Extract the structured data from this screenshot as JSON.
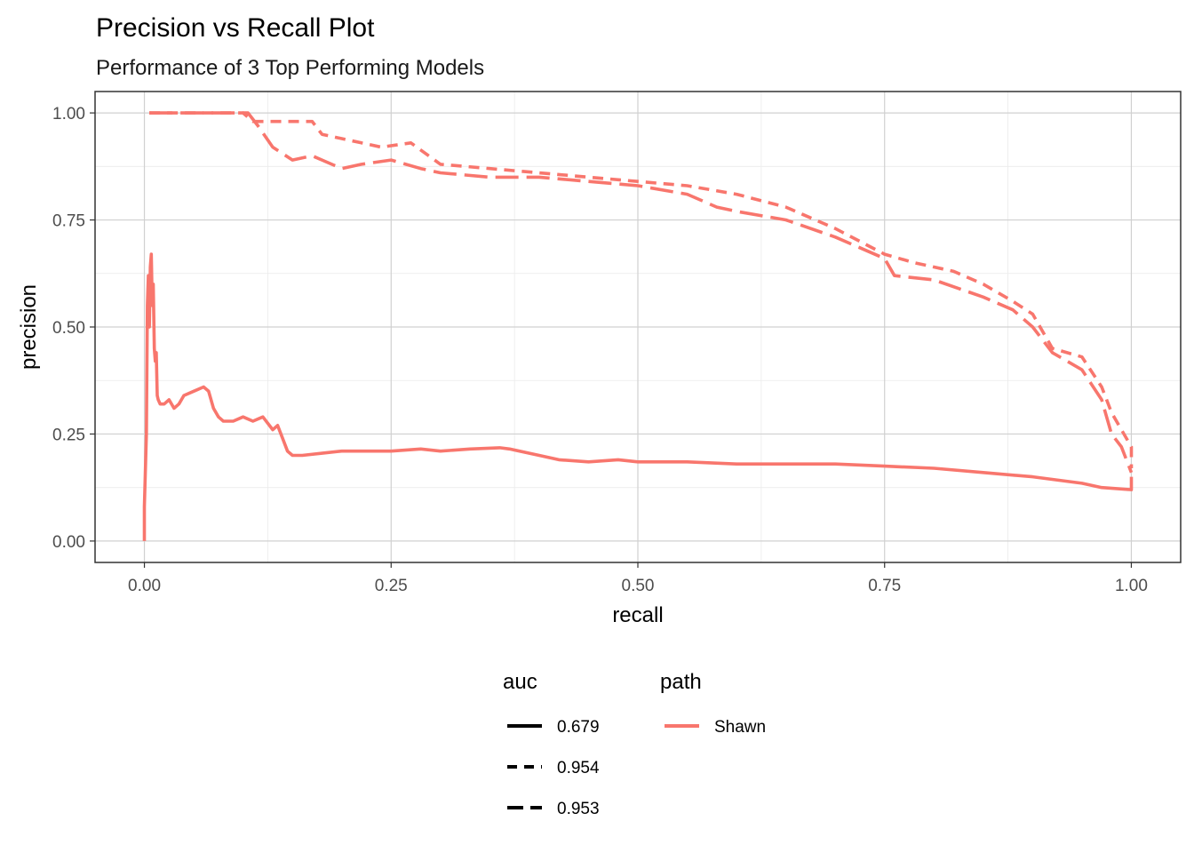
{
  "chart_data": {
    "type": "line",
    "title": "Precision vs Recall Plot",
    "subtitle": "Performance of 3 Top Performing Models",
    "xlabel": "recall",
    "ylabel": "precision",
    "xlim": [
      -0.05,
      1.05
    ],
    "ylim": [
      -0.05,
      1.05
    ],
    "x_ticks": [
      0.0,
      0.25,
      0.5,
      0.75,
      1.0
    ],
    "x_tick_labels": [
      "0.00",
      "0.25",
      "0.50",
      "0.75",
      "1.00"
    ],
    "y_ticks": [
      0.0,
      0.25,
      0.5,
      0.75,
      1.0
    ],
    "y_tick_labels": [
      "0.00",
      "0.25",
      "0.50",
      "0.75",
      "1.00"
    ],
    "grid": true,
    "legend_position": "bottom",
    "legends": [
      {
        "title": "auc",
        "entries": [
          {
            "label": "0.679",
            "linetype": "solid"
          },
          {
            "label": "0.954",
            "linetype": "dashed"
          },
          {
            "label": "0.953",
            "linetype": "longdash"
          }
        ]
      },
      {
        "title": "path",
        "entries": [
          {
            "label": "Shawn",
            "color": "#F8766D"
          }
        ]
      }
    ],
    "series": [
      {
        "auc": "0.679",
        "path": "Shawn",
        "linetype": "solid",
        "color": "#F8766D",
        "x": [
          0.0,
          0.0,
          0.002,
          0.003,
          0.004,
          0.005,
          0.006,
          0.007,
          0.008,
          0.009,
          0.01,
          0.011,
          0.012,
          0.013,
          0.014,
          0.016,
          0.02,
          0.025,
          0.03,
          0.035,
          0.04,
          0.05,
          0.06,
          0.065,
          0.07,
          0.075,
          0.08,
          0.09,
          0.1,
          0.11,
          0.12,
          0.13,
          0.135,
          0.14,
          0.145,
          0.15,
          0.16,
          0.18,
          0.2,
          0.22,
          0.25,
          0.28,
          0.3,
          0.33,
          0.36,
          0.37,
          0.4,
          0.42,
          0.45,
          0.48,
          0.5,
          0.55,
          0.6,
          0.65,
          0.7,
          0.75,
          0.8,
          0.85,
          0.9,
          0.95,
          0.97,
          1.0,
          1.0
        ],
        "y": [
          0.0,
          0.08,
          0.25,
          0.55,
          0.62,
          0.5,
          0.64,
          0.67,
          0.55,
          0.6,
          0.45,
          0.42,
          0.44,
          0.34,
          0.33,
          0.32,
          0.32,
          0.33,
          0.31,
          0.32,
          0.34,
          0.35,
          0.36,
          0.35,
          0.31,
          0.29,
          0.28,
          0.28,
          0.29,
          0.28,
          0.29,
          0.26,
          0.27,
          0.24,
          0.21,
          0.2,
          0.2,
          0.205,
          0.21,
          0.21,
          0.21,
          0.215,
          0.21,
          0.215,
          0.218,
          0.215,
          0.2,
          0.19,
          0.185,
          0.19,
          0.185,
          0.185,
          0.18,
          0.18,
          0.18,
          0.175,
          0.17,
          0.16,
          0.15,
          0.135,
          0.125,
          0.12,
          0.15
        ]
      },
      {
        "auc": "0.954",
        "path": "Shawn",
        "linetype": "dashed",
        "color": "#F8766D",
        "x": [
          0.005,
          0.1,
          0.11,
          0.12,
          0.15,
          0.17,
          0.18,
          0.2,
          0.22,
          0.24,
          0.27,
          0.3,
          0.35,
          0.4,
          0.45,
          0.5,
          0.55,
          0.6,
          0.65,
          0.7,
          0.75,
          0.78,
          0.8,
          0.82,
          0.85,
          0.88,
          0.9,
          0.92,
          0.95,
          0.97,
          0.98,
          0.99,
          1.0,
          1.0
        ],
        "y": [
          1.0,
          1.0,
          0.98,
          0.98,
          0.98,
          0.98,
          0.95,
          0.94,
          0.93,
          0.92,
          0.93,
          0.88,
          0.87,
          0.86,
          0.85,
          0.84,
          0.83,
          0.81,
          0.78,
          0.73,
          0.67,
          0.65,
          0.64,
          0.63,
          0.6,
          0.56,
          0.53,
          0.45,
          0.43,
          0.36,
          0.3,
          0.26,
          0.22,
          0.17
        ]
      },
      {
        "auc": "0.953",
        "path": "Shawn",
        "linetype": "longdash",
        "color": "#F8766D",
        "x": [
          0.005,
          0.105,
          0.115,
          0.13,
          0.15,
          0.17,
          0.18,
          0.2,
          0.22,
          0.25,
          0.28,
          0.3,
          0.35,
          0.4,
          0.45,
          0.5,
          0.55,
          0.58,
          0.6,
          0.65,
          0.7,
          0.75,
          0.76,
          0.8,
          0.85,
          0.88,
          0.9,
          0.92,
          0.95,
          0.97,
          0.98,
          0.99,
          1.0
        ],
        "y": [
          1.0,
          1.0,
          0.97,
          0.92,
          0.89,
          0.9,
          0.89,
          0.87,
          0.88,
          0.89,
          0.87,
          0.86,
          0.85,
          0.85,
          0.84,
          0.83,
          0.81,
          0.78,
          0.77,
          0.75,
          0.71,
          0.66,
          0.62,
          0.61,
          0.57,
          0.54,
          0.5,
          0.44,
          0.4,
          0.33,
          0.25,
          0.22,
          0.16
        ]
      }
    ]
  }
}
